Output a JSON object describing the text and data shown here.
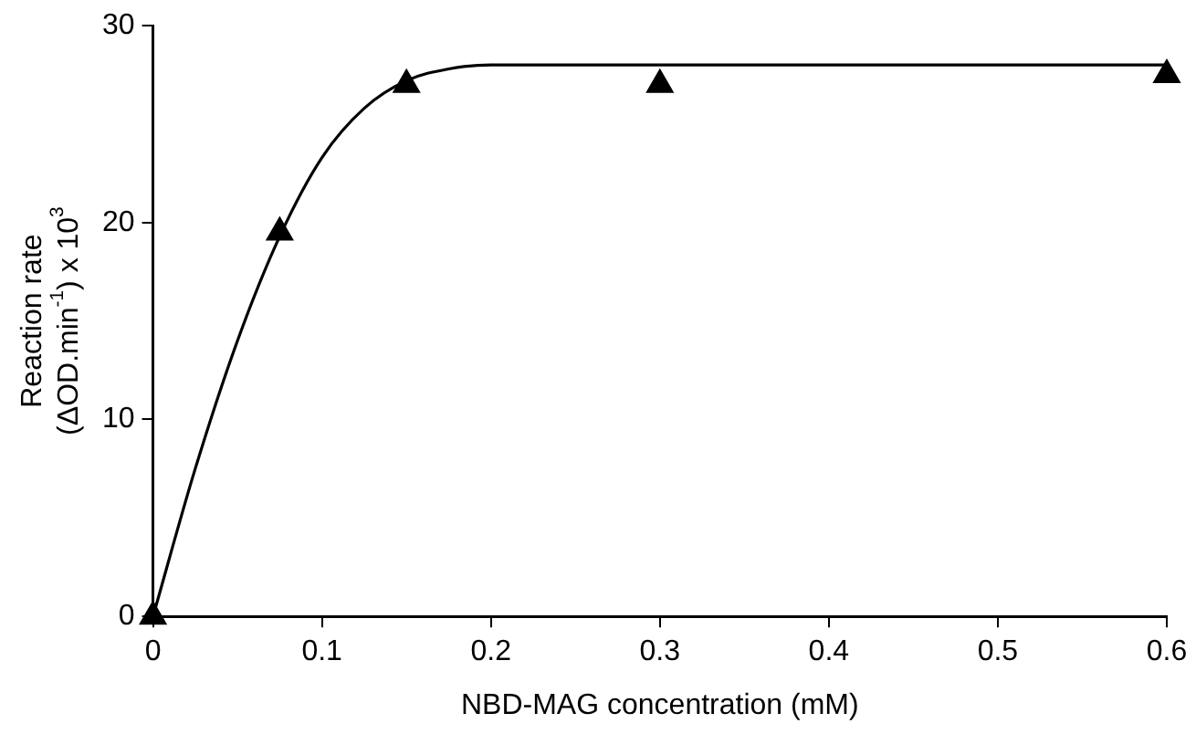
{
  "chart_data": {
    "type": "scatter",
    "xlabel": "NBD-MAG concentration (mM)",
    "ylabel": "Reaction rate\n(ΔOD.min$^{-1}$) x 10$^{3}$",
    "xlim": [
      0,
      0.6
    ],
    "xticks": [
      0,
      0.1,
      0.2,
      0.3,
      0.4,
      0.5,
      0.6
    ],
    "ylim": [
      0,
      30
    ],
    "yticks": [
      0,
      10,
      20,
      30
    ],
    "grid": false,
    "legend": false,
    "series": [
      {
        "type": "line",
        "color": "#000000",
        "marker": "none",
        "line_style": "solid",
        "x": [
          0,
          0.025,
          0.05,
          0.075,
          0.1,
          0.125,
          0.15,
          0.175,
          0.2,
          0.25,
          0.3,
          0.4,
          0.5,
          0.6
        ],
        "values": [
          0,
          7.5,
          14,
          19.3,
          23.3,
          25.8,
          27.2,
          27.8,
          28,
          28,
          28,
          28,
          28,
          28
        ]
      },
      {
        "type": "scatter",
        "color": "#000000",
        "marker": "triangle",
        "x": [
          0,
          0.075,
          0.15,
          0.3,
          0.6
        ],
        "values": [
          0,
          19.5,
          27,
          27,
          27.5
        ]
      }
    ]
  }
}
